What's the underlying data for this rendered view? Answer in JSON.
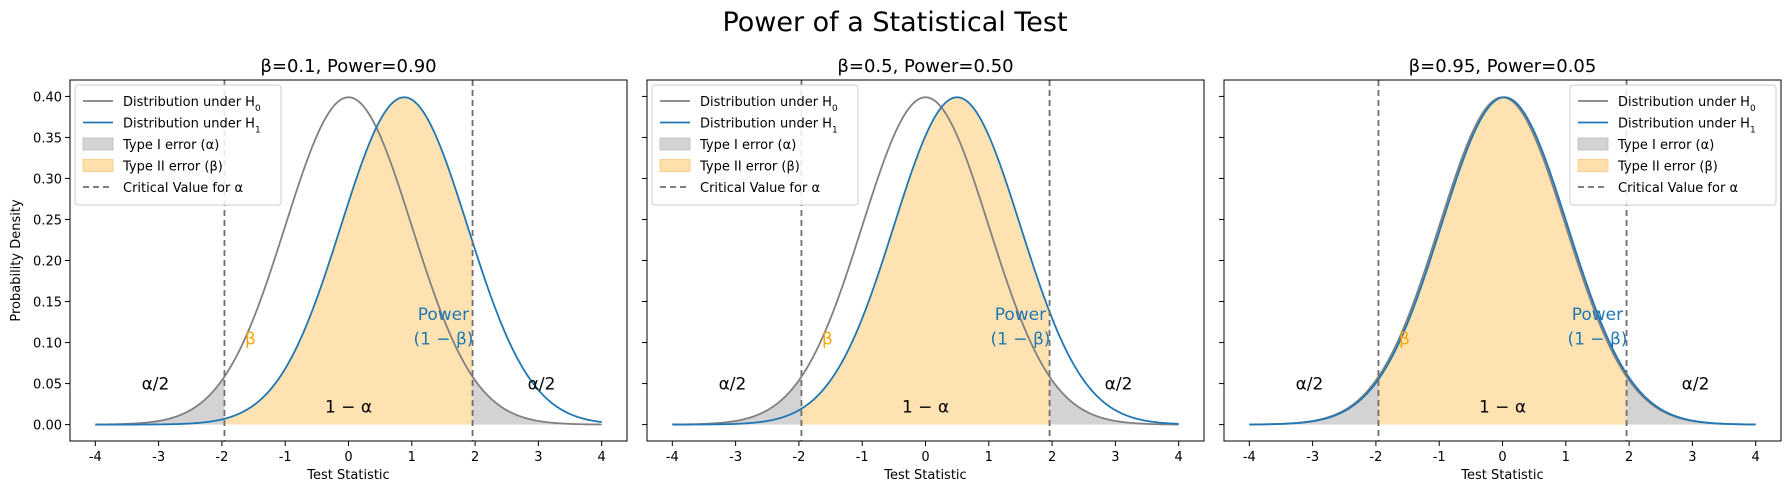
{
  "suptitle": "Power of a Statistical Test",
  "colors": {
    "h0": "#808080",
    "h1": "#1f77b4",
    "type1": "#d3d3d3",
    "type2": "#ffe0ad",
    "critical": "#6e6e6e",
    "beta_label": "#ffa500",
    "power_label": "#1f77b4"
  },
  "legend": {
    "h0": "Distribution under H",
    "h0_sub": "0",
    "h1": "Distribution under H",
    "h1_sub": "1",
    "type1": "Type I error (α)",
    "type2": "Type II error (β)",
    "critical": "Critical Value for α"
  },
  "annotations": {
    "alpha_half": "α/2",
    "one_minus_alpha": "1 − α",
    "beta": "β",
    "power_line1": "Power",
    "power_line2": "(1 − β)"
  },
  "chart_data": [
    {
      "type": "area",
      "title": "β=0.1, Power=0.90",
      "xlabel": "Test Statistic",
      "ylabel": "Probability Density",
      "x_range": [
        -4,
        4
      ],
      "xlim": [
        -4.4,
        4.4
      ],
      "ylim": [
        -0.02,
        0.42
      ],
      "xticks": [
        -4,
        -3,
        -2,
        -1,
        0,
        1,
        2,
        3,
        4
      ],
      "yticks": [
        0.0,
        0.05,
        0.1,
        0.15,
        0.2,
        0.25,
        0.3,
        0.35,
        0.4
      ],
      "critical_values": [
        -1.96,
        1.96
      ],
      "h0_mean": 0,
      "h1_mean": 0.88,
      "sd": 1,
      "legend_loc": "upper left",
      "grid": false
    },
    {
      "type": "area",
      "title": "β=0.5, Power=0.50",
      "xlabel": "Test Statistic",
      "ylabel": "",
      "x_range": [
        -4,
        4
      ],
      "xlim": [
        -4.4,
        4.4
      ],
      "ylim": [
        -0.02,
        0.42
      ],
      "xticks": [
        -4,
        -3,
        -2,
        -1,
        0,
        1,
        2,
        3,
        4
      ],
      "yticks": [
        0.0,
        0.05,
        0.1,
        0.15,
        0.2,
        0.25,
        0.3,
        0.35,
        0.4
      ],
      "critical_values": [
        -1.96,
        1.96
      ],
      "h0_mean": 0,
      "h1_mean": 0.5,
      "sd": 1,
      "legend_loc": "upper left",
      "grid": false
    },
    {
      "type": "area",
      "title": "β=0.95, Power=0.05",
      "xlabel": "Test Statistic",
      "ylabel": "",
      "x_range": [
        -4,
        4
      ],
      "xlim": [
        -4.4,
        4.4
      ],
      "ylim": [
        -0.02,
        0.42
      ],
      "xticks": [
        -4,
        -3,
        -2,
        -1,
        0,
        1,
        2,
        3,
        4
      ],
      "yticks": [
        0.0,
        0.05,
        0.1,
        0.15,
        0.2,
        0.25,
        0.3,
        0.35,
        0.4
      ],
      "critical_values": [
        -1.96,
        1.96
      ],
      "h0_mean": 0,
      "h1_mean": 0.03,
      "sd": 1,
      "legend_loc": "upper right",
      "grid": false
    }
  ]
}
